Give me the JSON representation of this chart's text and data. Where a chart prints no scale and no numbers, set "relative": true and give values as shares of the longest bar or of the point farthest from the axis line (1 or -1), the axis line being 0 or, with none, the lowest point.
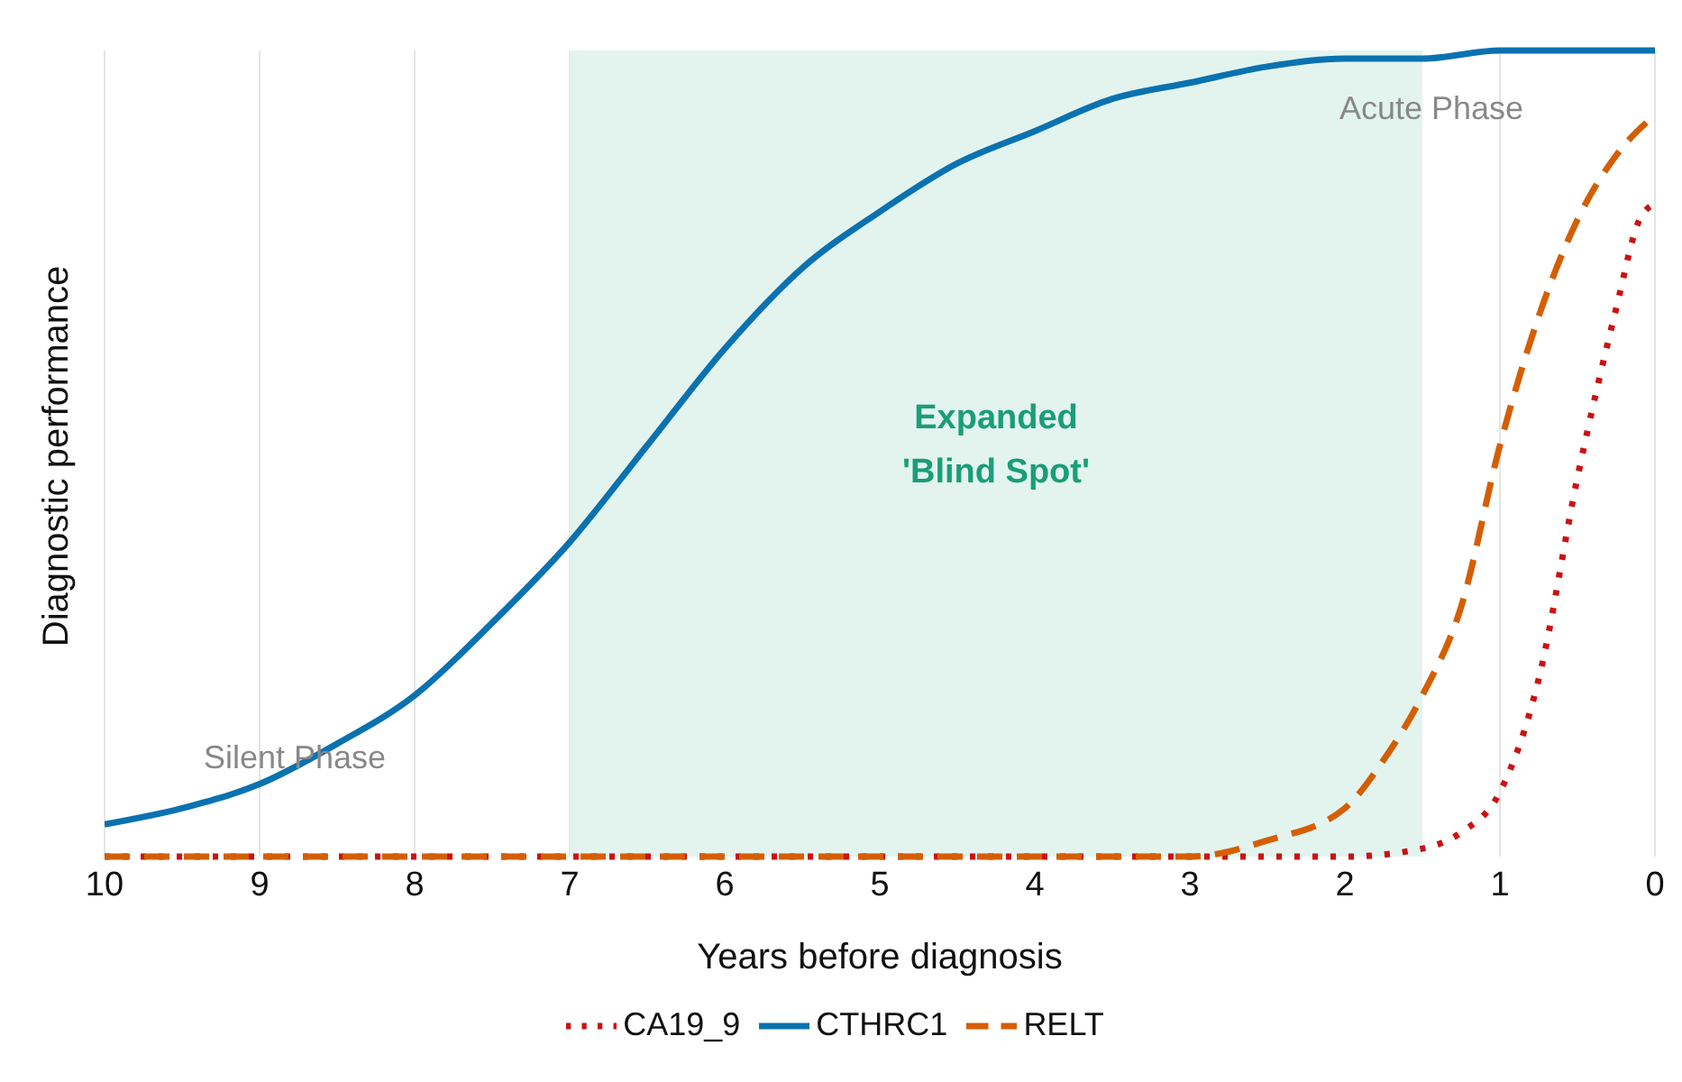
{
  "chart_data": {
    "type": "line",
    "relative": true,
    "xlabel": "Years before diagnosis",
    "ylabel": "Diagnostic performance",
    "xlim": [
      10,
      0
    ],
    "xticks": [
      10,
      9,
      8,
      7,
      6,
      5,
      4,
      3,
      2,
      1,
      0
    ],
    "grid": "x",
    "legend": "bottom",
    "marker": "none",
    "series": [
      {
        "name": "CA19_9",
        "color": "#cc1111",
        "line_style": "dotted",
        "x": [
          10,
          9,
          8,
          7,
          6,
          5,
          4,
          3,
          2,
          1.5,
          1.25,
          1,
          0.75,
          0.5,
          0.25,
          0.1,
          0
        ],
        "values": [
          0,
          0,
          0,
          0,
          0,
          0,
          0,
          0,
          0,
          0.01,
          0.03,
          0.08,
          0.22,
          0.47,
          0.68,
          0.79,
          0.81
        ]
      },
      {
        "name": "CTHRC1",
        "color": "#0a72b0",
        "line_style": "solid",
        "x": [
          10,
          9.5,
          9,
          8.5,
          8,
          7.5,
          7,
          6.5,
          6,
          5.5,
          5,
          4.5,
          4,
          3.5,
          3,
          2.5,
          2,
          1.5,
          1,
          0.5,
          0
        ],
        "values": [
          0.04,
          0.06,
          0.09,
          0.14,
          0.2,
          0.29,
          0.39,
          0.51,
          0.63,
          0.73,
          0.8,
          0.86,
          0.9,
          0.94,
          0.96,
          0.98,
          0.99,
          0.99,
          1,
          1,
          1
        ]
      },
      {
        "name": "RELT",
        "color": "#d55e00",
        "line_style": "dashed",
        "x": [
          10,
          9,
          8,
          7,
          6,
          5,
          4,
          3,
          2.5,
          2,
          1.75,
          1.5,
          1.25,
          1,
          0.75,
          0.5,
          0.25,
          0
        ],
        "values": [
          0,
          0,
          0,
          0,
          0,
          0,
          0,
          0,
          0.02,
          0.06,
          0.12,
          0.2,
          0.31,
          0.51,
          0.67,
          0.79,
          0.87,
          0.92
        ]
      }
    ],
    "bands": [
      {
        "axis": "x",
        "from": 7,
        "to": 1.5,
        "label": "Expanded 'Blind Spot'",
        "color": "#e3f4ef"
      }
    ],
    "annotations": [
      "Silent Phase",
      "Acute Phase"
    ]
  }
}
